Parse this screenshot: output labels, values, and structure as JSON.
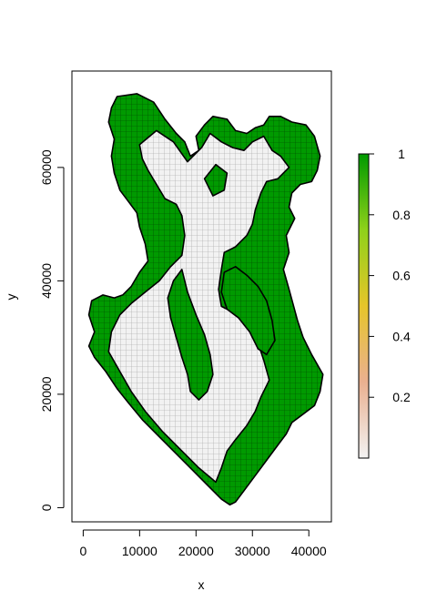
{
  "chart_data": {
    "type": "heatmap",
    "title": "",
    "xlabel": "x",
    "ylabel": "y",
    "xlim": [
      -2000,
      44000
    ],
    "ylim": [
      -2500,
      77000
    ],
    "x_ticks": [
      0,
      10000,
      20000,
      30000,
      40000
    ],
    "x_tick_labels": [
      "0",
      "10000",
      "20000",
      "30000",
      "40000"
    ],
    "y_ticks": [
      0,
      20000,
      40000,
      60000
    ],
    "y_tick_labels": [
      "0",
      "20000",
      "40000",
      "60000"
    ],
    "grid": false,
    "legend": "right",
    "colorbar": {
      "min": 0,
      "max": 1,
      "ticks": [
        0.2,
        0.4,
        0.6,
        0.8,
        1
      ],
      "tick_labels": [
        "0.2",
        "0.4",
        "0.6",
        "0.8",
        "1"
      ],
      "colors": [
        "#f2f2f2",
        "#eab090",
        "#e6c52a",
        "#8fd11a",
        "#009a00"
      ]
    },
    "region_values": {
      "low_value": 0,
      "high_value": 1
    },
    "regions": [
      {
        "value": 1,
        "polygon": [
          [
            6000,
            72500
          ],
          [
            9500,
            73000
          ],
          [
            12500,
            71500
          ],
          [
            14500,
            68500
          ],
          [
            16500,
            66000
          ],
          [
            18000,
            64500
          ],
          [
            19000,
            62000
          ],
          [
            20500,
            63000
          ],
          [
            20000,
            65500
          ],
          [
            21500,
            67500
          ],
          [
            23000,
            69000
          ],
          [
            25500,
            68500
          ],
          [
            27000,
            66500
          ],
          [
            29000,
            66000
          ],
          [
            30500,
            67000
          ],
          [
            32000,
            67500
          ],
          [
            33000,
            69000
          ],
          [
            35000,
            69000
          ],
          [
            37000,
            68000
          ],
          [
            39500,
            67500
          ],
          [
            41000,
            65500
          ],
          [
            42000,
            62000
          ],
          [
            41500,
            59500
          ],
          [
            40500,
            57500
          ],
          [
            38500,
            57000
          ],
          [
            37000,
            55500
          ],
          [
            36500,
            53000
          ],
          [
            37500,
            51000
          ],
          [
            36000,
            48000
          ],
          [
            36500,
            45000
          ],
          [
            35500,
            42000
          ],
          [
            36500,
            38500
          ],
          [
            38000,
            33000
          ],
          [
            39000,
            30000
          ],
          [
            40500,
            27000
          ],
          [
            42500,
            23500
          ],
          [
            42000,
            20500
          ],
          [
            41000,
            18000
          ],
          [
            39000,
            16500
          ],
          [
            37000,
            15000
          ],
          [
            36000,
            13000
          ],
          [
            34500,
            11000
          ],
          [
            33000,
            9000
          ],
          [
            31500,
            7000
          ],
          [
            30000,
            5000
          ],
          [
            28500,
            3000
          ],
          [
            27000,
            1000
          ],
          [
            26000,
            500
          ],
          [
            24500,
            1500
          ],
          [
            22000,
            4000
          ],
          [
            19000,
            7000
          ],
          [
            16000,
            10000
          ],
          [
            13000,
            13000
          ],
          [
            10500,
            15500
          ],
          [
            8000,
            18500
          ],
          [
            6000,
            21000
          ],
          [
            4000,
            24000
          ],
          [
            2000,
            26500
          ],
          [
            1000,
            28500
          ],
          [
            2000,
            31000
          ],
          [
            1000,
            34000
          ],
          [
            1500,
            36500
          ],
          [
            3500,
            37500
          ],
          [
            5500,
            37000
          ],
          [
            7000,
            37500
          ],
          [
            8500,
            39000
          ],
          [
            10000,
            41500
          ],
          [
            11500,
            43500
          ],
          [
            11000,
            46500
          ],
          [
            10000,
            49500
          ],
          [
            9500,
            52000
          ],
          [
            8000,
            54000
          ],
          [
            6500,
            56000
          ],
          [
            5500,
            59000
          ],
          [
            5000,
            62000
          ],
          [
            5500,
            65000
          ],
          [
            4500,
            68000
          ],
          [
            5000,
            70500
          ]
        ]
      },
      {
        "value": 0,
        "polygon": [
          [
            10000,
            64000
          ],
          [
            13000,
            66500
          ],
          [
            16000,
            64500
          ],
          [
            18500,
            61000
          ],
          [
            21000,
            63500
          ],
          [
            22500,
            66000
          ],
          [
            24500,
            64500
          ],
          [
            26500,
            63500
          ],
          [
            28500,
            63000
          ],
          [
            30000,
            64500
          ],
          [
            32000,
            65500
          ],
          [
            33500,
            63000
          ],
          [
            35000,
            62000
          ],
          [
            36500,
            60000
          ],
          [
            34500,
            58000
          ],
          [
            32500,
            57500
          ],
          [
            31500,
            55500
          ],
          [
            30500,
            52500
          ],
          [
            30000,
            50000
          ],
          [
            29000,
            48000
          ],
          [
            27000,
            46000
          ],
          [
            25000,
            45000
          ],
          [
            24500,
            42000
          ],
          [
            24000,
            38500
          ],
          [
            24500,
            35500
          ],
          [
            27500,
            34000
          ],
          [
            29500,
            31500
          ],
          [
            31000,
            29000
          ],
          [
            32000,
            26000
          ],
          [
            33000,
            22500
          ],
          [
            31500,
            19500
          ],
          [
            30500,
            17000
          ],
          [
            29000,
            14500
          ],
          [
            27000,
            12000
          ],
          [
            25500,
            10000
          ],
          [
            24500,
            7000
          ],
          [
            23500,
            4500
          ],
          [
            20500,
            7000
          ],
          [
            17500,
            10000
          ],
          [
            14000,
            13500
          ],
          [
            11000,
            17000
          ],
          [
            8500,
            20500
          ],
          [
            6500,
            24000
          ],
          [
            4500,
            27500
          ],
          [
            5000,
            31000
          ],
          [
            6500,
            34000
          ],
          [
            8500,
            36000
          ],
          [
            11000,
            38000
          ],
          [
            13500,
            40000
          ],
          [
            15500,
            42500
          ],
          [
            17500,
            44500
          ],
          [
            18000,
            48000
          ],
          [
            17500,
            51500
          ],
          [
            16500,
            53500
          ],
          [
            14500,
            54500
          ],
          [
            13000,
            57000
          ],
          [
            11500,
            59500
          ],
          [
            10500,
            61500
          ]
        ]
      },
      {
        "value": 1,
        "polygon": [
          [
            16000,
            40000
          ],
          [
            17500,
            42000
          ],
          [
            18500,
            38000
          ],
          [
            20000,
            34000
          ],
          [
            21500,
            30500
          ],
          [
            22500,
            27000
          ],
          [
            23000,
            23500
          ],
          [
            22000,
            20500
          ],
          [
            20500,
            19000
          ],
          [
            19000,
            20500
          ],
          [
            18500,
            23500
          ],
          [
            17500,
            26500
          ],
          [
            16500,
            30000
          ],
          [
            15500,
            33500
          ],
          [
            15000,
            37000
          ]
        ]
      },
      {
        "value": 1,
        "polygon": [
          [
            25000,
            41500
          ],
          [
            27000,
            42500
          ],
          [
            29000,
            41000
          ],
          [
            31000,
            39000
          ],
          [
            32500,
            36500
          ],
          [
            33500,
            33000
          ],
          [
            34000,
            29500
          ],
          [
            32500,
            27000
          ],
          [
            31000,
            28000
          ],
          [
            29500,
            31000
          ],
          [
            27500,
            33500
          ],
          [
            25500,
            35000
          ],
          [
            24500,
            38000
          ]
        ]
      },
      {
        "value": 1,
        "polygon": [
          [
            21500,
            58000
          ],
          [
            23500,
            60500
          ],
          [
            25500,
            59000
          ],
          [
            25000,
            56000
          ],
          [
            23000,
            55000
          ]
        ]
      }
    ]
  }
}
